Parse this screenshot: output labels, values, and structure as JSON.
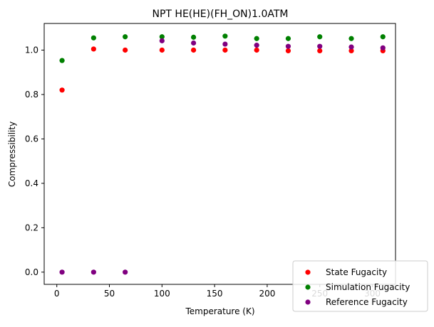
{
  "chart_data": {
    "type": "scatter",
    "title": "NPT HE(HE)(FH_ON)1.0ATM",
    "xlabel": "Temperature (K)",
    "ylabel": "Compressibility",
    "xlim": [
      -12,
      322
    ],
    "ylim": [
      -0.055,
      1.12
    ],
    "xticks": [
      "0",
      "50",
      "100",
      "150",
      "200",
      "250",
      "300"
    ],
    "yticks": [
      "0.0",
      "0.2",
      "0.4",
      "0.6",
      "0.8",
      "1.0"
    ],
    "grid": false,
    "legend_position": "lower-right",
    "series": [
      {
        "name": "State Fugacity",
        "color": "#ff0000",
        "x": [
          5,
          35,
          65,
          100,
          130,
          160,
          190,
          220,
          250,
          280,
          310
        ],
        "y": [
          0.82,
          1.005,
          1.0,
          1.0,
          1.0,
          1.0,
          1.0,
          0.997,
          0.997,
          0.997,
          0.997
        ]
      },
      {
        "name": "Simulation Fugacity",
        "color": "#008000",
        "x": [
          5,
          35,
          65,
          100,
          130,
          160,
          190,
          220,
          250,
          280,
          310
        ],
        "y": [
          0.953,
          1.055,
          1.06,
          1.06,
          1.058,
          1.063,
          1.052,
          1.052,
          1.06,
          1.052,
          1.06
        ]
      },
      {
        "name": "Reference Fugacity",
        "color": "#800080",
        "x": [
          5,
          35,
          65,
          100,
          130,
          160,
          190,
          220,
          250,
          280,
          310
        ],
        "y": [
          0.0,
          0.0,
          0.0,
          1.042,
          1.032,
          1.027,
          1.022,
          1.017,
          1.017,
          1.014,
          1.01
        ]
      }
    ]
  }
}
